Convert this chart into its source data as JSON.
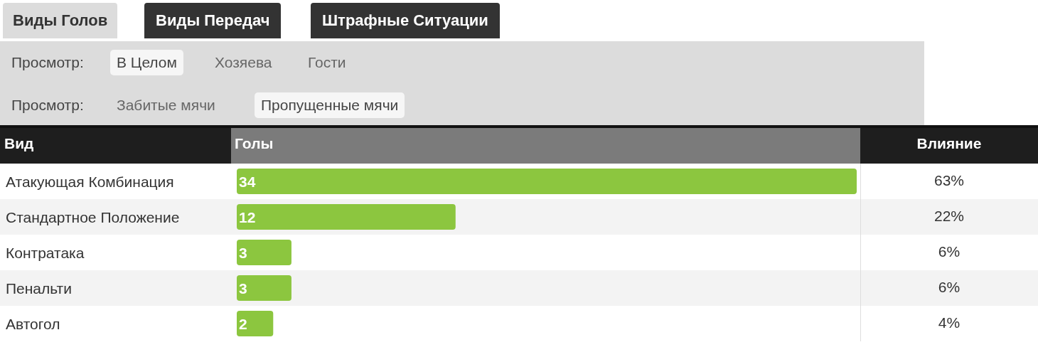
{
  "chart_data": {
    "type": "bar",
    "orientation": "horizontal",
    "xlabel": "Голы",
    "ylabel": "Вид",
    "categories": [
      "Атакующая Комбинация",
      "Стандартное Положение",
      "Контратака",
      "Пенальти",
      "Автогол"
    ],
    "values": [
      34,
      12,
      3,
      3,
      2
    ],
    "color": "#8cc63f",
    "xlim": [
      0,
      34
    ],
    "data_labels": true,
    "tick_labels": "y",
    "grid": false,
    "annotations": [
      "Виды Голов",
      "Виды Передач",
      "Штрафные Ситуации",
      "Просмотр:",
      "В Целом",
      "Хозяева",
      "Гости",
      "Просмотр:",
      "Забитые мячи",
      "Пропущенные мячи",
      "Влияние",
      "63%",
      "22%",
      "6%",
      "6%",
      "4%"
    ]
  }
}
